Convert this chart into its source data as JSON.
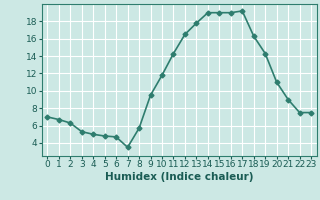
{
  "x": [
    0,
    1,
    2,
    3,
    4,
    5,
    6,
    7,
    8,
    9,
    10,
    11,
    12,
    13,
    14,
    15,
    16,
    17,
    18,
    19,
    20,
    21,
    22,
    23
  ],
  "y": [
    7.0,
    6.7,
    6.3,
    5.3,
    5.0,
    4.8,
    4.7,
    3.5,
    5.7,
    9.5,
    11.8,
    14.3,
    16.5,
    17.8,
    19.0,
    19.0,
    19.0,
    19.2,
    16.3,
    14.3,
    11.0,
    9.0,
    7.5,
    7.5
  ],
  "line_color": "#2e7d6e",
  "marker": "D",
  "marker_size": 2.5,
  "bg_color": "#cce8e4",
  "grid_color": "#ffffff",
  "xlabel": "Humidex (Indice chaleur)",
  "xlim": [
    -0.5,
    23.5
  ],
  "ylim": [
    2.5,
    20.0
  ],
  "yticks": [
    4,
    6,
    8,
    10,
    12,
    14,
    16,
    18
  ],
  "xticks": [
    0,
    1,
    2,
    3,
    4,
    5,
    6,
    7,
    8,
    9,
    10,
    11,
    12,
    13,
    14,
    15,
    16,
    17,
    18,
    19,
    20,
    21,
    22,
    23
  ],
  "xlabel_fontsize": 7.5,
  "tick_fontsize": 6.5,
  "line_width": 1.2,
  "tick_color": "#1a5c54"
}
